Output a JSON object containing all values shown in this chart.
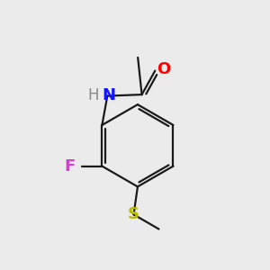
{
  "background_color": "#ebebeb",
  "bond_color": "#1a1a1a",
  "atom_colors": {
    "N": "#1414ff",
    "O": "#ff0000",
    "F": "#cc44cc",
    "S": "#bbbb00"
  },
  "bond_width": 1.6,
  "font_size": 13
}
